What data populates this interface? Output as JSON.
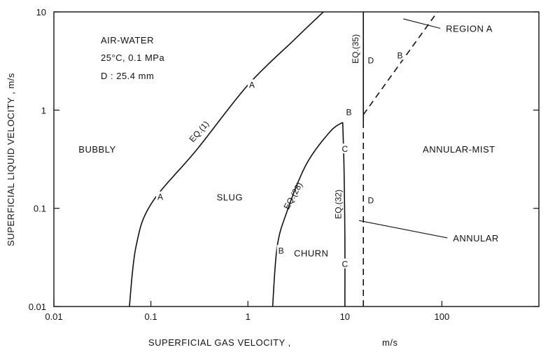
{
  "chart_data": {
    "type": "line",
    "title": "",
    "xlabel": "SUPERFICIAL GAS VELOCITY ,",
    "xlabel_unit": "m/s",
    "ylabel": "SUPERFICIAL LIQUID VELOCITY , m/s",
    "x_scale": "log",
    "y_scale": "log",
    "xlim": [
      0.01,
      1000
    ],
    "ylim": [
      0.01,
      10
    ],
    "grid": false,
    "x_ticks": [
      {
        "value": 0.01,
        "label": "0.01"
      },
      {
        "value": 0.1,
        "label": "0.1"
      },
      {
        "value": 1,
        "label": "1"
      },
      {
        "value": 10,
        "label": "10"
      },
      {
        "value": 100,
        "label": "100"
      }
    ],
    "y_ticks": [
      {
        "value": 0.01,
        "label": "0.01"
      },
      {
        "value": 0.1,
        "label": "0.1"
      },
      {
        "value": 1,
        "label": "1"
      },
      {
        "value": 10,
        "label": "10"
      }
    ],
    "conditions": [
      "AIR-WATER",
      "25°C, 0.1 MPa",
      "D : 25.4 mm"
    ],
    "series": [
      {
        "label": "EQ.(1)",
        "style": "solid",
        "points": [
          [
            0.06,
            0.01
          ],
          [
            0.07,
            0.04
          ],
          [
            0.1,
            0.11
          ],
          [
            0.3,
            0.4
          ],
          [
            1,
            1.8
          ],
          [
            3,
            5.2
          ],
          [
            6,
            10
          ]
        ]
      },
      {
        "label": "EQ.(28)",
        "style": "solid",
        "points": [
          [
            1.8,
            0.01
          ],
          [
            2,
            0.04
          ],
          [
            2.5,
            0.09
          ],
          [
            4,
            0.28
          ],
          [
            7,
            0.6
          ],
          [
            9.5,
            0.75
          ]
        ]
      },
      {
        "label": "EQ.(32)",
        "style": "solid",
        "points": [
          [
            9.5,
            0.75
          ],
          [
            9.8,
            0.25
          ],
          [
            10,
            0.05
          ],
          [
            10,
            0.01
          ]
        ]
      },
      {
        "label": "EQ.(35)",
        "style": "solid",
        "points": [
          [
            15.5,
            0.75
          ],
          [
            15.5,
            10
          ]
        ]
      },
      {
        "label": "",
        "style": "dashed",
        "points": [
          [
            15.5,
            0.01
          ],
          [
            15.5,
            0.75
          ]
        ]
      },
      {
        "label": "",
        "style": "dashed",
        "points": [
          [
            15.5,
            0.9
          ],
          [
            40,
            3.3
          ],
          [
            90,
            10
          ]
        ]
      }
    ],
    "regions": [
      {
        "name": "BUBBLY",
        "x": 0.028,
        "y": 0.4
      },
      {
        "name": "SLUG",
        "x": 0.65,
        "y": 0.13
      },
      {
        "name": "CHURN",
        "x": 4.5,
        "y": 0.035
      },
      {
        "name": "ANNULAR-MIST",
        "x": 150,
        "y": 0.4
      }
    ],
    "callouts": [
      {
        "name": "REGION A",
        "x": 110,
        "y": 6.8
      },
      {
        "name": "ANNULAR",
        "x": 130,
        "y": 0.05
      }
    ],
    "point_labels": [
      {
        "label": "A",
        "x": 0.125,
        "y": 0.13
      },
      {
        "label": "A",
        "x": 1.1,
        "y": 1.8
      },
      {
        "label": "B",
        "x": 2.2,
        "y": 0.037
      },
      {
        "label": "B",
        "x": 11,
        "y": 0.95
      },
      {
        "label": "B",
        "x": 37,
        "y": 3.6
      },
      {
        "label": "C",
        "x": 10,
        "y": 0.4
      },
      {
        "label": "C",
        "x": 10,
        "y": 0.027
      },
      {
        "label": "D",
        "x": 18.5,
        "y": 3.2
      },
      {
        "label": "D",
        "x": 18.5,
        "y": 0.12
      }
    ]
  }
}
